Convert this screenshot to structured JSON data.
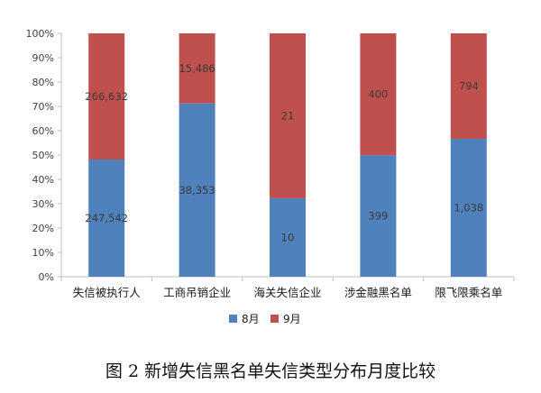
{
  "chart_data": {
    "type": "bar",
    "stacked": "percent",
    "categories": [
      "失信被执行人",
      "工商吊销企业",
      "海关失信企业",
      "涉金融黑名单",
      "限飞限乘名单"
    ],
    "series": [
      {
        "name": "8月",
        "values": [
          247542,
          38353,
          10,
          399,
          1038
        ],
        "labels": [
          "247,542",
          "38,353",
          "10",
          "399",
          "1,038"
        ],
        "color": "#4f81bd"
      },
      {
        "name": "9月",
        "values": [
          266632,
          15486,
          21,
          400,
          794
        ],
        "labels": [
          "266,632",
          "15,486",
          "21",
          "400",
          "794"
        ],
        "color": "#c0504d"
      }
    ],
    "yticks": [
      "0%",
      "10%",
      "20%",
      "30%",
      "40%",
      "50%",
      "60%",
      "70%",
      "80%",
      "90%",
      "100%"
    ],
    "ylim": [
      0,
      100
    ],
    "grid": false,
    "legend_position": "bottom",
    "caption": "图 2  新增失信黑名单失信类型分布月度比较"
  }
}
